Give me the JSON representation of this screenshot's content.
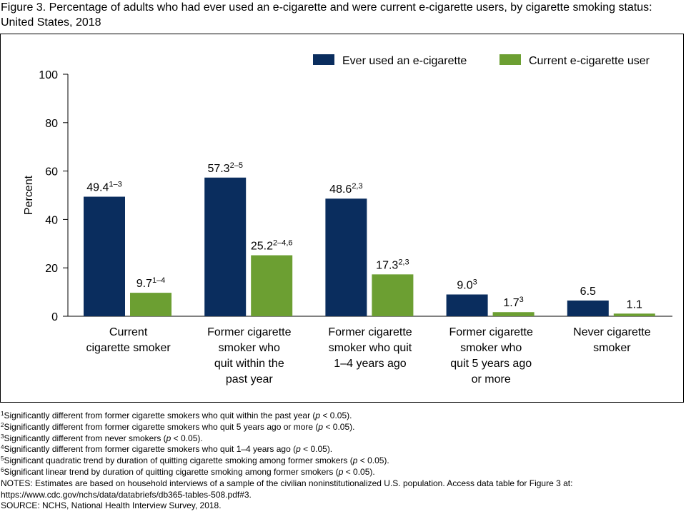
{
  "title": "Figure 3. Percentage of adults who had ever used an e-cigarette and were current e-cigarette users, by cigarette smoking status: United States, 2018",
  "colors": {
    "series1": "#0a2d5e",
    "series2": "#6c9f32"
  },
  "chart_data": {
    "type": "bar",
    "title": "",
    "ylabel": "Percent",
    "xlabel": "",
    "ylim": [
      0,
      100
    ],
    "yticks": [
      "0",
      "20",
      "40",
      "60",
      "80",
      "100"
    ],
    "legend_position": "top-right",
    "categories": [
      [
        "Current",
        "cigarette smoker"
      ],
      [
        "Former cigarette",
        "smoker who",
        "quit within the",
        "past year"
      ],
      [
        "Former cigarette",
        "smoker who quit",
        "1–4 years ago"
      ],
      [
        "Former cigarette",
        "smoker who",
        "quit 5 years ago",
        "or more"
      ],
      [
        "Never cigarette",
        "smoker"
      ]
    ],
    "series": [
      {
        "name": "Ever used an e-cigarette",
        "values": [
          49.4,
          57.3,
          48.6,
          9.0,
          6.5
        ],
        "labels": [
          "49.4",
          "57.3",
          "48.6",
          "9.0",
          "6.5"
        ],
        "label_sups": [
          "1–3",
          "2–5",
          "2,3",
          "3",
          ""
        ]
      },
      {
        "name": "Current e-cigarette user",
        "values": [
          9.7,
          25.2,
          17.3,
          1.7,
          1.1
        ],
        "labels": [
          "9.7",
          "25.2",
          "17.3",
          "1.7",
          "1.1"
        ],
        "label_sups": [
          "1–4",
          "2–4,6",
          "2,3",
          "3",
          ""
        ]
      }
    ]
  },
  "footnotes": [
    [
      "1",
      "Significantly different from former cigarette smokers who quit within the past year (",
      "p",
      " < 0.05)."
    ],
    [
      "2",
      "Significantly different from former cigarette smokers who quit 5 years ago or more (",
      "p",
      " < 0.05)."
    ],
    [
      "3",
      "Significantly different from never smokers (",
      "p",
      " < 0.05)."
    ],
    [
      "4",
      "Significantly different from former cigarette smokers who quit 1–4 years ago (",
      "p",
      " < 0.05)."
    ],
    [
      "5",
      "Significant quadratic trend by duration of quitting cigarette smoking among former smokers (",
      "p",
      " < 0.05)."
    ],
    [
      "6",
      "Significant linear trend by duration of quitting cigarette smoking among former smokers (",
      "p",
      " < 0.05)."
    ]
  ],
  "notes_text": "NOTES: Estimates are based on household interviews of a sample of the civilian noninstitutionalized U.S. population. Access data table for Figure 3 at:",
  "notes_url": "https://www.cdc.gov/nchs/data/databriefs/db365-tables-508.pdf#3.",
  "source_text": "SOURCE: NCHS, National Health Interview Survey, 2018."
}
